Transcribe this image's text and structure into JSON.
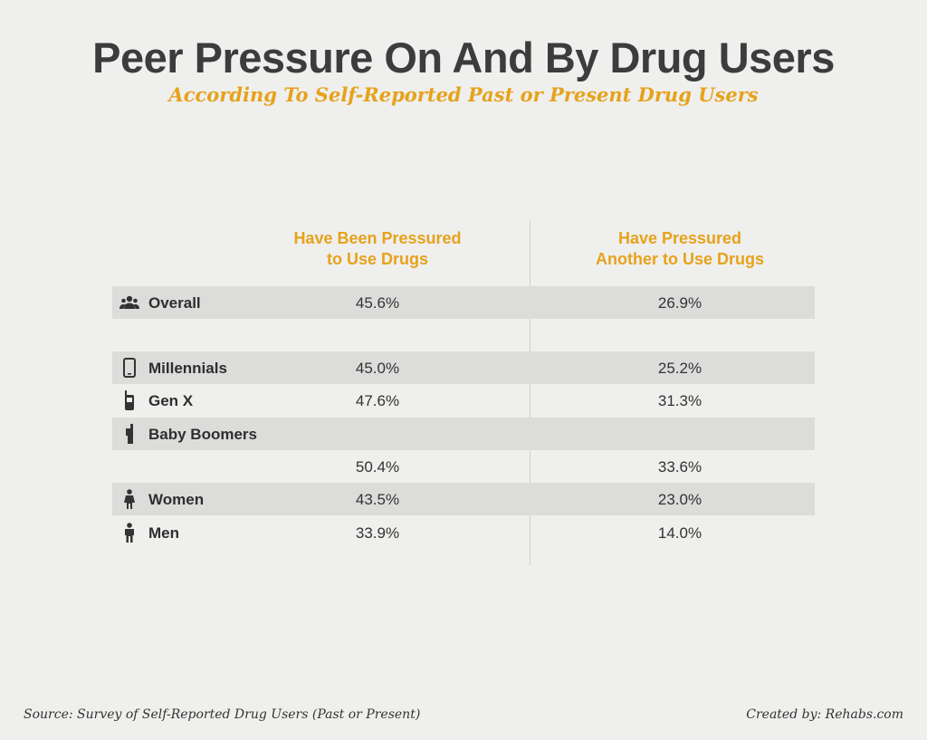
{
  "chart_data": {
    "type": "table",
    "title": "Peer Pressure On And By Drug Users",
    "subtitle": "According To Self-Reported Past or Present Drug Users",
    "columns": [
      "Have Been Pressured to Use Drugs",
      "Have Pressured Another to Use Drugs"
    ],
    "column_headers": [
      {
        "line1": "Have Been Pressured",
        "line2": "to Use Drugs"
      },
      {
        "line1": "Have Pressured",
        "line2": "Another to Use Drugs"
      }
    ],
    "rows": [
      {
        "label": "Overall",
        "icon": "group-icon",
        "values": [
          "45.6%",
          "26.9%"
        ]
      },
      {
        "label": "Millennials",
        "icon": "smartphone-icon",
        "values": [
          "45.0%",
          "25.2%"
        ]
      },
      {
        "label": "Gen X",
        "icon": "flip-phone-icon",
        "values": [
          "47.6%",
          "31.3%"
        ]
      },
      {
        "label": "Baby Boomers",
        "icon": "brick-phone-icon",
        "values": [
          "50.4%",
          "33.6%"
        ]
      },
      {
        "label": "Women",
        "icon": "woman-icon",
        "values": [
          "43.5%",
          "23.0%"
        ]
      },
      {
        "label": "Men",
        "icon": "man-icon",
        "values": [
          "33.9%",
          "14.0%"
        ]
      }
    ]
  },
  "footer": {
    "source": "Source: Survey of Self-Reported Drug Users (Past or Present)",
    "credit": "Created by: Rehabs.com"
  },
  "colors": {
    "accent": "#e6a21c",
    "title": "#3c3c3c",
    "row_shade": "#dcdcdb",
    "background": "#efefed"
  }
}
